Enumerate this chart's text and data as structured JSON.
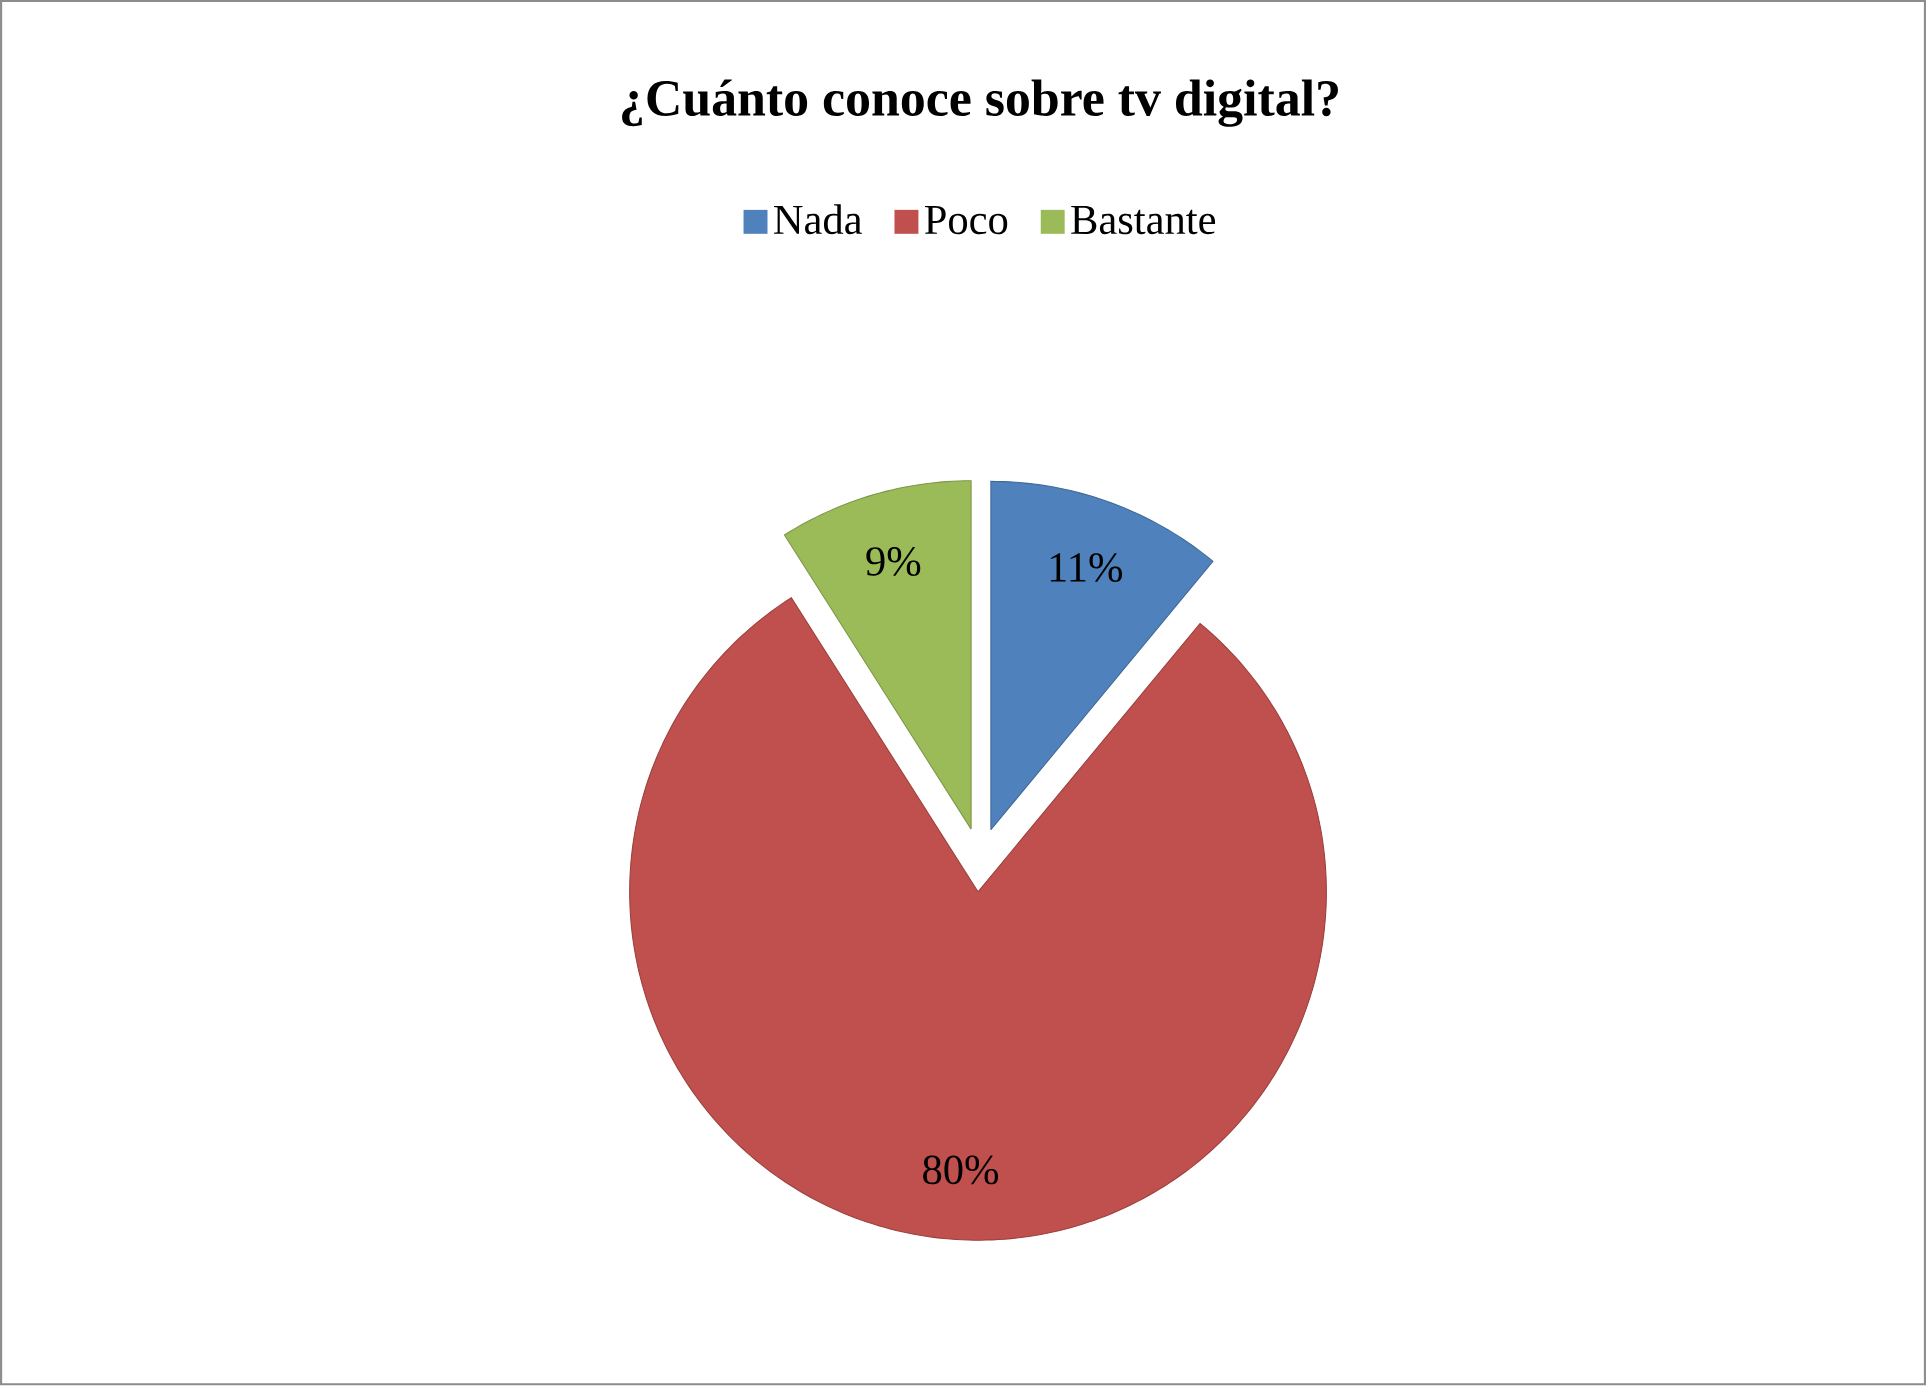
{
  "chart_data": {
    "type": "pie",
    "title": "¿Cuánto conoce sobre tv digital?",
    "categories": [
      "Nada",
      "Poco",
      "Bastante"
    ],
    "values": [
      11,
      80,
      9
    ],
    "colors": [
      "#4f81bd",
      "#c0504d",
      "#9bbb59"
    ],
    "value_labels": [
      "11%",
      "80%",
      "9%"
    ],
    "legend": "top"
  }
}
